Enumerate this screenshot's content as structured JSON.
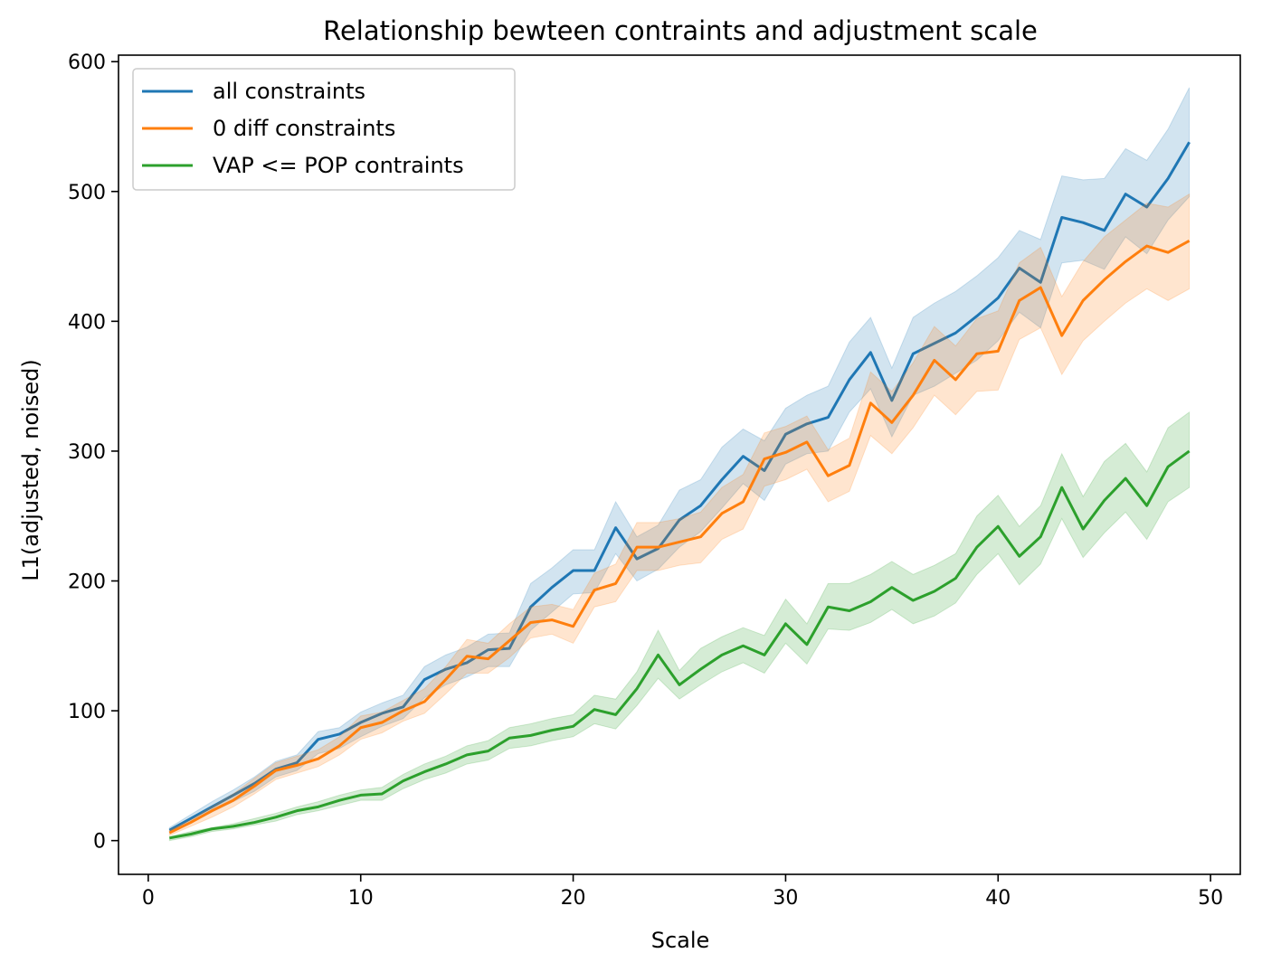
{
  "chart_data": {
    "type": "line",
    "title": "Relationship bewteen contraints and adjustment scale",
    "xlabel": "Scale",
    "ylabel": "L1(adjusted, noised)",
    "xlim": [
      -1.4,
      51.4
    ],
    "ylim": [
      -26,
      605
    ],
    "x_ticks": [
      0,
      10,
      20,
      30,
      40,
      50
    ],
    "x_tick_labels": [
      "0",
      "10",
      "20",
      "30",
      "40",
      "50"
    ],
    "y_ticks": [
      0,
      100,
      200,
      300,
      400,
      500,
      600
    ],
    "y_tick_labels": [
      "0",
      "100",
      "200",
      "300",
      "400",
      "500",
      "600"
    ],
    "grid": false,
    "legend_position": "top-left",
    "x": [
      1,
      2,
      3,
      4,
      5,
      6,
      7,
      8,
      9,
      10,
      11,
      12,
      13,
      14,
      15,
      16,
      17,
      18,
      19,
      20,
      21,
      22,
      23,
      24,
      25,
      26,
      27,
      28,
      29,
      30,
      31,
      32,
      33,
      34,
      35,
      36,
      37,
      38,
      39,
      40,
      41,
      42,
      43,
      44,
      45,
      46,
      47,
      48,
      49
    ],
    "series": [
      {
        "name": "all constraints",
        "color": "#1f77b4",
        "values": [
          8,
          17,
          26,
          35,
          44,
          55,
          60,
          78,
          82,
          91,
          98,
          103,
          124,
          132,
          137,
          147,
          148,
          180,
          195,
          208,
          208,
          241,
          217,
          225,
          247,
          258,
          278,
          296,
          285,
          313,
          321,
          326,
          355,
          376,
          339,
          375,
          383,
          391,
          404,
          418,
          441,
          430,
          480,
          476,
          470,
          498,
          488,
          510,
          538
        ],
        "lower": [
          6,
          14,
          22,
          30,
          38,
          49,
          54,
          67,
          71,
          80,
          88,
          94,
          110,
          120,
          126,
          134,
          134,
          162,
          176,
          190,
          191,
          221,
          200,
          209,
          226,
          238,
          256,
          275,
          262,
          290,
          298,
          300,
          330,
          348,
          311,
          343,
          350,
          360,
          370,
          385,
          407,
          395,
          445,
          447,
          440,
          465,
          452,
          478,
          496
        ],
        "upper": [
          10,
          20,
          30,
          39,
          49,
          61,
          66,
          84,
          87,
          99,
          106,
          112,
          134,
          143,
          149,
          159,
          160,
          198,
          210,
          224,
          224,
          261,
          234,
          243,
          270,
          278,
          303,
          317,
          308,
          333,
          343,
          350,
          384,
          403,
          364,
          403,
          414,
          423,
          435,
          449,
          470,
          463,
          512,
          509,
          510,
          533,
          524,
          548,
          580
        ]
      },
      {
        "name": "0 diff constraints",
        "color": "#ff7f0e",
        "values": [
          6,
          14,
          23,
          31,
          42,
          54,
          58,
          63,
          73,
          87,
          91,
          100,
          107,
          124,
          142,
          140,
          154,
          168,
          170,
          165,
          193,
          198,
          226,
          226,
          230,
          234,
          252,
          261,
          294,
          299,
          307,
          281,
          289,
          337,
          322,
          343,
          370,
          355,
          375,
          377,
          416,
          426,
          389,
          416,
          432,
          446,
          458,
          453,
          462
        ],
        "lower": [
          4,
          11,
          18,
          26,
          36,
          47,
          52,
          57,
          66,
          78,
          83,
          92,
          98,
          113,
          129,
          129,
          141,
          156,
          159,
          152,
          180,
          184,
          208,
          208,
          212,
          214,
          232,
          240,
          273,
          278,
          286,
          261,
          269,
          312,
          298,
          318,
          343,
          328,
          346,
          347,
          386,
          395,
          359,
          385,
          400,
          414,
          425,
          416,
          425
        ],
        "upper": [
          8,
          16,
          26,
          36,
          48,
          60,
          65,
          70,
          80,
          96,
          99,
          108,
          117,
          134,
          155,
          152,
          167,
          180,
          182,
          178,
          206,
          213,
          245,
          245,
          248,
          253,
          272,
          282,
          314,
          319,
          327,
          301,
          310,
          361,
          346,
          368,
          396,
          381,
          402,
          408,
          445,
          457,
          419,
          446,
          465,
          478,
          491,
          488,
          498
        ]
      },
      {
        "name": "VAP <= POP contraints",
        "color": "#2ca02c",
        "values": [
          2,
          5,
          9,
          11,
          14,
          18,
          23,
          26,
          31,
          35,
          36,
          46,
          53,
          59,
          66,
          69,
          79,
          81,
          85,
          88,
          101,
          97,
          117,
          143,
          120,
          132,
          143,
          150,
          143,
          167,
          151,
          180,
          177,
          184,
          195,
          185,
          192,
          202,
          226,
          242,
          219,
          234,
          272,
          240,
          262,
          279,
          258,
          288,
          300
        ],
        "lower": [
          0,
          3,
          7,
          9,
          12,
          15,
          20,
          23,
          27,
          31,
          31,
          40,
          47,
          52,
          59,
          62,
          71,
          73,
          77,
          80,
          90,
          86,
          104,
          125,
          109,
          120,
          130,
          137,
          129,
          152,
          136,
          163,
          162,
          168,
          178,
          167,
          173,
          183,
          205,
          221,
          197,
          213,
          248,
          218,
          237,
          253,
          232,
          261,
          272
        ],
        "upper": [
          3,
          7,
          10,
          13,
          17,
          21,
          26,
          30,
          35,
          39,
          41,
          51,
          59,
          65,
          73,
          77,
          87,
          90,
          94,
          97,
          112,
          109,
          130,
          162,
          131,
          148,
          157,
          164,
          158,
          186,
          167,
          198,
          198,
          205,
          215,
          205,
          212,
          221,
          250,
          266,
          242,
          258,
          298,
          265,
          292,
          306,
          284,
          318,
          330
        ]
      }
    ]
  }
}
